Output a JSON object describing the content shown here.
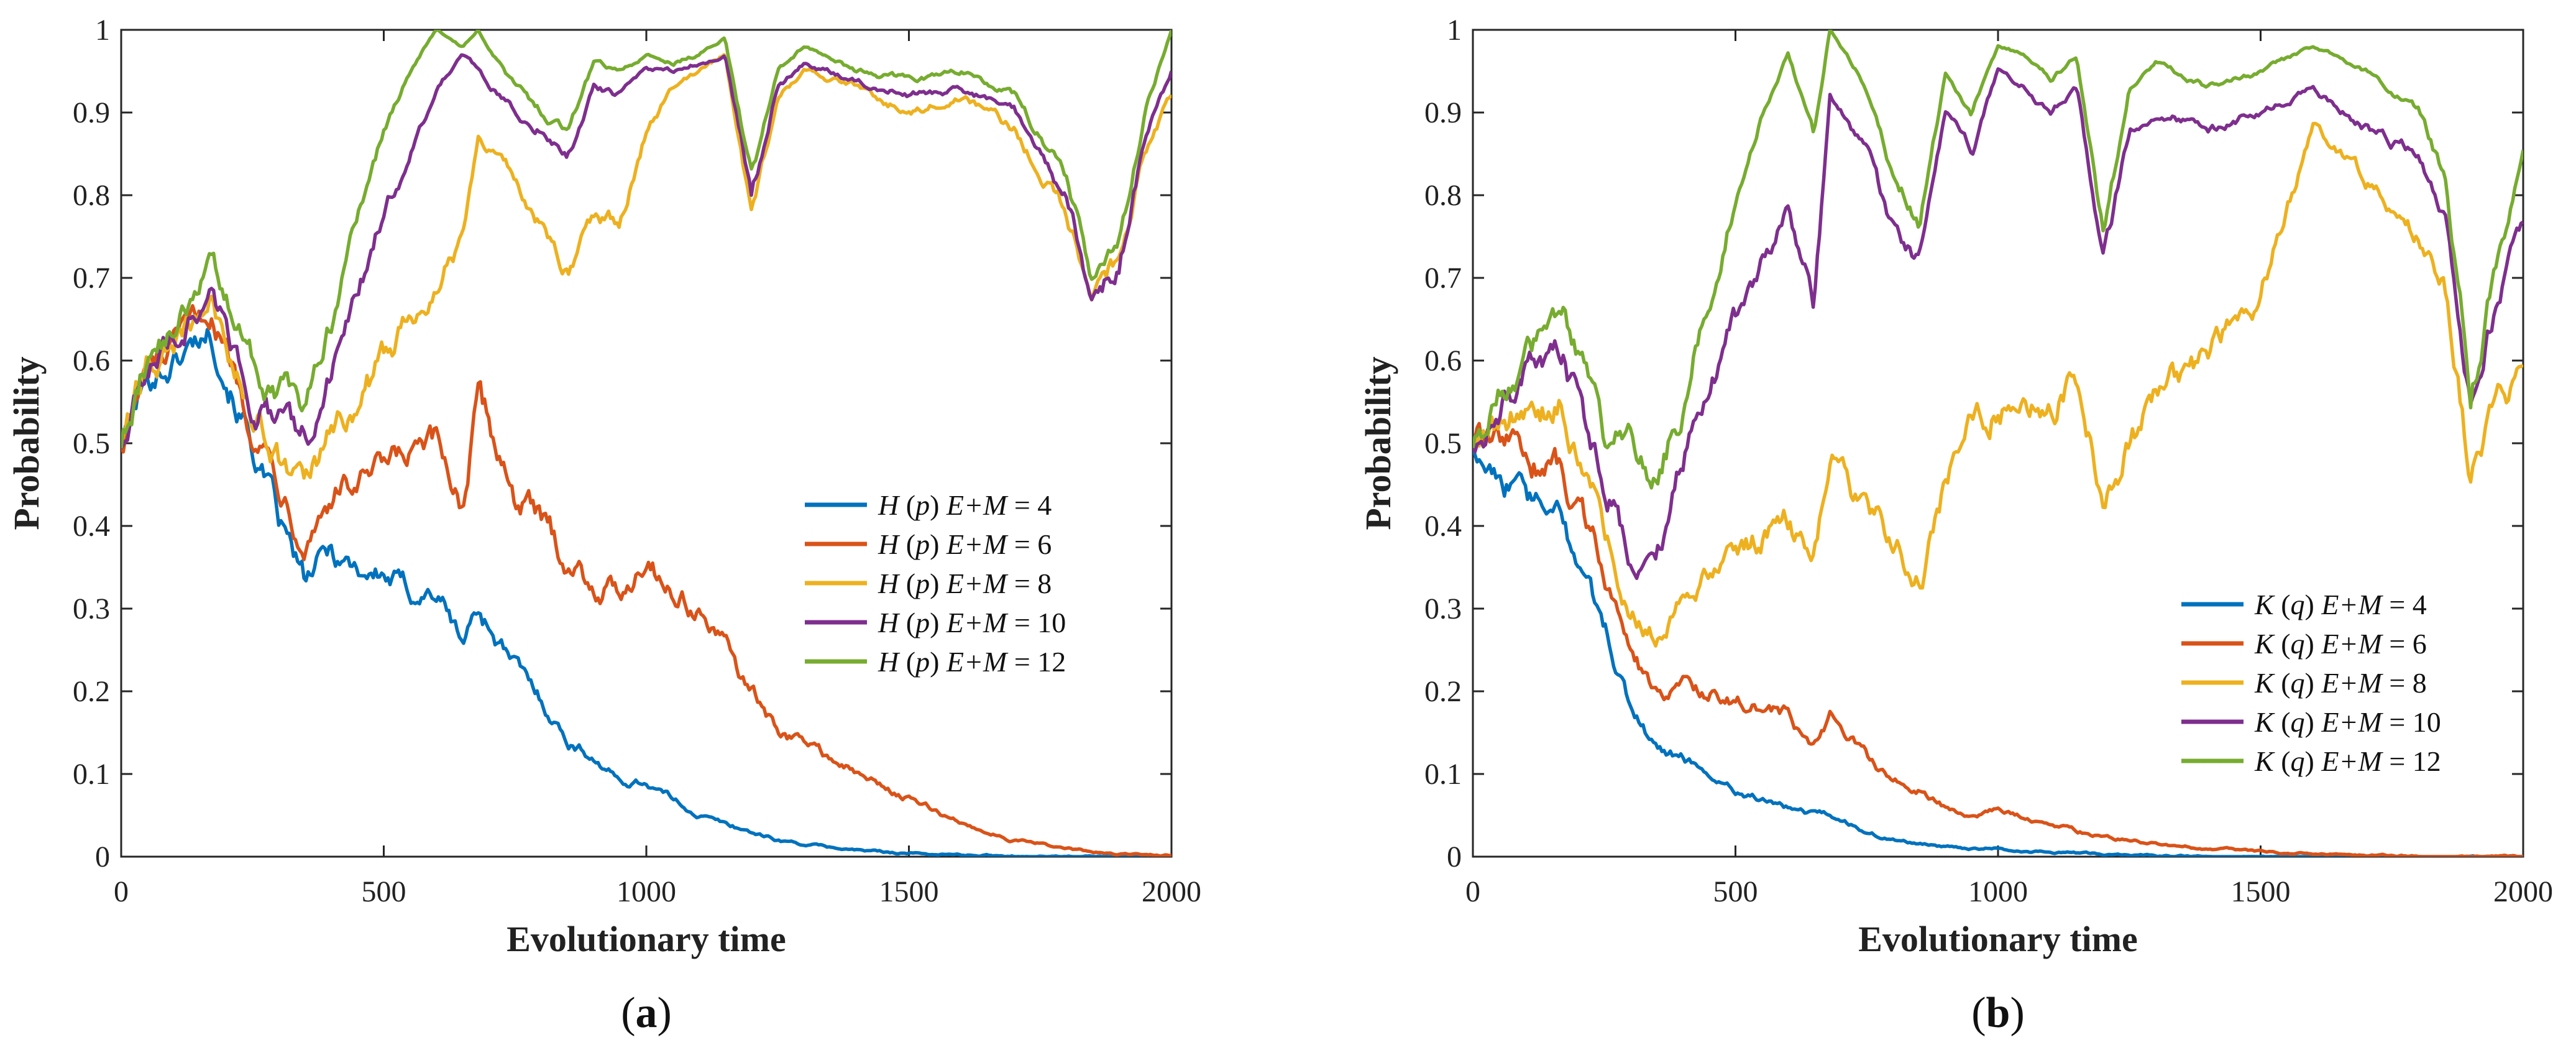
{
  "chart_data": [
    {
      "type": "line",
      "panel_label_open": "(",
      "panel_label": "a",
      "panel_label_close": ")",
      "xlabel": "Evolutionary time",
      "ylabel": "Probability",
      "xlim": [
        0,
        2000
      ],
      "ylim": [
        0,
        1
      ],
      "xticks": [
        "0",
        "500",
        "1000",
        "1500",
        "2000"
      ],
      "yticks": [
        "0",
        "0.1",
        "0.2",
        "0.3",
        "0.4",
        "0.5",
        "0.6",
        "0.7",
        "0.8",
        "0.9",
        "1"
      ],
      "legend_position": "center-right",
      "x": [
        0,
        50,
        100,
        170,
        250,
        300,
        350,
        400,
        450,
        500,
        550,
        600,
        650,
        680,
        750,
        800,
        850,
        900,
        950,
        1000,
        1050,
        1100,
        1150,
        1200,
        1250,
        1300,
        1400,
        1500,
        1600,
        1700,
        1800,
        1850,
        1900,
        1950,
        2000
      ],
      "series": [
        {
          "name_func": "H",
          "name_arg": "p",
          "name_vars": "E+M",
          "name_eq": " = 4",
          "color": "#0072BD",
          "values": [
            0.5,
            0.58,
            0.6,
            0.64,
            0.5,
            0.4,
            0.33,
            0.37,
            0.35,
            0.34,
            0.32,
            0.32,
            0.26,
            0.3,
            0.23,
            0.19,
            0.14,
            0.12,
            0.09,
            0.09,
            0.07,
            0.05,
            0.04,
            0.03,
            0.02,
            0.015,
            0.008,
            0.004,
            0.002,
            0.001,
            0.0,
            0.0,
            0.0,
            0.0,
            0.0
          ]
        },
        {
          "name_func": "H",
          "name_arg": "p",
          "name_vars": "E+M",
          "name_eq": " = 6",
          "color": "#D95319",
          "values": [
            0.5,
            0.58,
            0.61,
            0.66,
            0.53,
            0.46,
            0.39,
            0.44,
            0.45,
            0.46,
            0.48,
            0.49,
            0.43,
            0.55,
            0.44,
            0.4,
            0.36,
            0.33,
            0.32,
            0.37,
            0.32,
            0.3,
            0.25,
            0.2,
            0.15,
            0.14,
            0.1,
            0.07,
            0.04,
            0.02,
            0.01,
            0.005,
            0.003,
            0.002,
            0.002
          ]
        },
        {
          "name_func": "H",
          "name_arg": "p",
          "name_vars": "E+M",
          "name_eq": " = 8",
          "color": "#EDB120",
          "values": [
            0.5,
            0.59,
            0.62,
            0.67,
            0.54,
            0.48,
            0.44,
            0.5,
            0.55,
            0.6,
            0.65,
            0.7,
            0.75,
            0.88,
            0.82,
            0.76,
            0.7,
            0.78,
            0.77,
            0.88,
            0.93,
            0.95,
            0.97,
            0.78,
            0.92,
            0.95,
            0.93,
            0.9,
            0.92,
            0.88,
            0.78,
            0.67,
            0.72,
            0.85,
            0.92
          ]
        },
        {
          "name_func": "H",
          "name_arg": "p",
          "name_vars": "E+M",
          "name_eq": " = 10",
          "color": "#7E2F8E",
          "values": [
            0.5,
            0.59,
            0.63,
            0.68,
            0.56,
            0.52,
            0.5,
            0.58,
            0.68,
            0.78,
            0.85,
            0.93,
            0.97,
            0.95,
            0.9,
            0.88,
            0.85,
            0.93,
            0.92,
            0.95,
            0.95,
            0.96,
            0.97,
            0.8,
            0.93,
            0.96,
            0.94,
            0.92,
            0.93,
            0.9,
            0.8,
            0.68,
            0.72,
            0.87,
            0.95
          ]
        },
        {
          "name_func": "H",
          "name_arg": "p",
          "name_vars": "E+M",
          "name_eq": " = 12",
          "color": "#77AC30",
          "values": [
            0.5,
            0.6,
            0.64,
            0.72,
            0.6,
            0.56,
            0.55,
            0.65,
            0.77,
            0.88,
            0.95,
            1.0,
            0.98,
            1.0,
            0.93,
            0.9,
            0.88,
            0.96,
            0.95,
            0.97,
            0.96,
            0.97,
            0.99,
            0.82,
            0.95,
            0.98,
            0.95,
            0.94,
            0.95,
            0.92,
            0.82,
            0.7,
            0.75,
            0.9,
            1.0
          ]
        }
      ]
    },
    {
      "type": "line",
      "panel_label_open": "(",
      "panel_label": "b",
      "panel_label_close": ")",
      "xlabel": "Evolutionary time",
      "ylabel": "Probability",
      "xlim": [
        0,
        2000
      ],
      "ylim": [
        0,
        1
      ],
      "xticks": [
        "0",
        "500",
        "1000",
        "1500",
        "2000"
      ],
      "yticks": [
        "0",
        "0.1",
        "0.2",
        "0.3",
        "0.4",
        "0.5",
        "0.6",
        "0.7",
        "0.8",
        "0.9",
        "1"
      ],
      "legend_position": "lower-right",
      "x": [
        0,
        50,
        100,
        170,
        250,
        300,
        350,
        400,
        450,
        500,
        550,
        600,
        650,
        680,
        750,
        800,
        850,
        900,
        950,
        1000,
        1050,
        1100,
        1150,
        1200,
        1250,
        1300,
        1400,
        1500,
        1600,
        1700,
        1800,
        1850,
        1900,
        1950,
        2000
      ],
      "series": [
        {
          "name_func": "K",
          "name_arg": "q",
          "name_vars": "E+M",
          "name_eq": " = 4",
          "color": "#0072BD",
          "values": [
            0.5,
            0.47,
            0.43,
            0.4,
            0.28,
            0.18,
            0.13,
            0.12,
            0.1,
            0.08,
            0.07,
            0.06,
            0.05,
            0.05,
            0.03,
            0.02,
            0.015,
            0.012,
            0.01,
            0.01,
            0.007,
            0.005,
            0.004,
            0.003,
            0.002,
            0.001,
            0.0,
            0.0,
            0.0,
            0.0,
            0.0,
            0.0,
            0.0,
            0.0,
            0.0
          ]
        },
        {
          "name_func": "K",
          "name_arg": "q",
          "name_vars": "E+M",
          "name_eq": " = 6",
          "color": "#D95319",
          "values": [
            0.5,
            0.5,
            0.48,
            0.47,
            0.35,
            0.25,
            0.19,
            0.21,
            0.2,
            0.19,
            0.18,
            0.17,
            0.13,
            0.17,
            0.12,
            0.09,
            0.08,
            0.06,
            0.05,
            0.06,
            0.045,
            0.04,
            0.03,
            0.025,
            0.02,
            0.015,
            0.01,
            0.006,
            0.003,
            0.002,
            0.001,
            0.0,
            0.0,
            0.0,
            0.0
          ]
        },
        {
          "name_func": "K",
          "name_arg": "q",
          "name_vars": "E+M",
          "name_eq": " = 8",
          "color": "#EDB120",
          "values": [
            0.5,
            0.52,
            0.54,
            0.55,
            0.4,
            0.3,
            0.27,
            0.32,
            0.34,
            0.36,
            0.38,
            0.4,
            0.35,
            0.5,
            0.42,
            0.38,
            0.33,
            0.45,
            0.52,
            0.55,
            0.56,
            0.54,
            0.58,
            0.44,
            0.5,
            0.55,
            0.6,
            0.68,
            0.88,
            0.82,
            0.75,
            0.7,
            0.45,
            0.55,
            0.58
          ]
        },
        {
          "name_func": "K",
          "name_arg": "q",
          "name_vars": "E+M",
          "name_eq": " = 10",
          "color": "#7E2F8E",
          "values": [
            0.5,
            0.55,
            0.58,
            0.6,
            0.46,
            0.37,
            0.36,
            0.48,
            0.58,
            0.65,
            0.72,
            0.78,
            0.67,
            0.92,
            0.85,
            0.75,
            0.72,
            0.9,
            0.85,
            0.95,
            0.93,
            0.9,
            0.93,
            0.72,
            0.88,
            0.9,
            0.88,
            0.9,
            0.93,
            0.88,
            0.85,
            0.78,
            0.55,
            0.68,
            0.77
          ]
        },
        {
          "name_func": "K",
          "name_arg": "q",
          "name_vars": "E+M",
          "name_eq": " = 12",
          "color": "#77AC30",
          "values": [
            0.5,
            0.56,
            0.6,
            0.67,
            0.5,
            0.5,
            0.46,
            0.55,
            0.68,
            0.8,
            0.9,
            0.97,
            0.87,
            1.0,
            0.93,
            0.82,
            0.77,
            0.95,
            0.9,
            0.98,
            0.97,
            0.94,
            0.97,
            0.75,
            0.93,
            0.96,
            0.93,
            0.95,
            0.98,
            0.95,
            0.9,
            0.82,
            0.57,
            0.72,
            0.85
          ]
        }
      ]
    }
  ]
}
